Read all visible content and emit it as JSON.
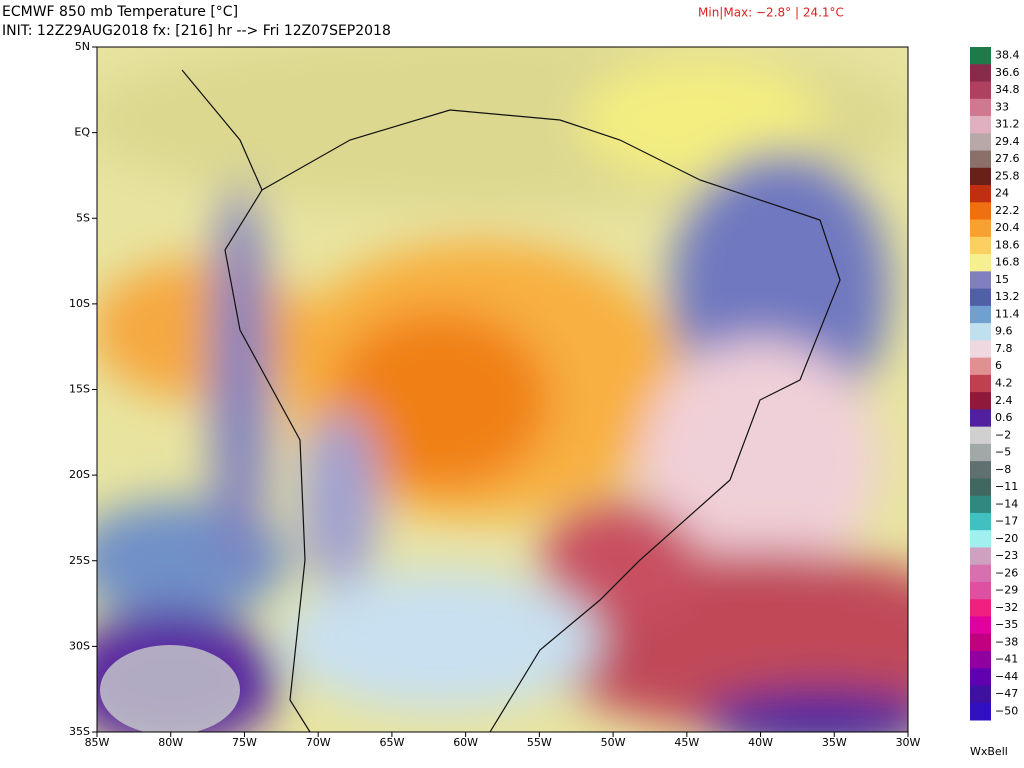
{
  "header": {
    "title": "ECMWF 850 mb Temperature [°C]",
    "init": "INIT: 12Z29AUG2018 fx: [216] hr --> Fri 12Z07SEP2018",
    "minmax": "Min|Max: −2.8° | 24.1°C"
  },
  "map": {
    "lat_labels": [
      "5N",
      "EQ",
      "5S",
      "10S",
      "15S",
      "20S",
      "25S",
      "30S",
      "35S"
    ],
    "lon_labels": [
      "85W",
      "80W",
      "75W",
      "70W",
      "65W",
      "60W",
      "55W",
      "50W",
      "45W",
      "40W",
      "35W",
      "30W"
    ]
  },
  "colorbar": {
    "levels": [
      {
        "label": "38.4",
        "color": "#1f7a4a"
      },
      {
        "label": "36.6",
        "color": "#8a2a4a"
      },
      {
        "label": "34.8",
        "color": "#b04060"
      },
      {
        "label": "33",
        "color": "#d07890"
      },
      {
        "label": "31.2",
        "color": "#e0b0c0"
      },
      {
        "label": "29.4",
        "color": "#b8a8a8"
      },
      {
        "label": "27.6",
        "color": "#8a7068"
      },
      {
        "label": "25.8",
        "color": "#6a2018"
      },
      {
        "label": "24",
        "color": "#c03010"
      },
      {
        "label": "22.2",
        "color": "#f07010"
      },
      {
        "label": "20.4",
        "color": "#f8a030"
      },
      {
        "label": "18.6",
        "color": "#fbd060"
      },
      {
        "label": "16.8",
        "color": "#f8f090"
      },
      {
        "label": "15",
        "color": "#8080c0"
      },
      {
        "label": "13.2",
        "color": "#5060a8"
      },
      {
        "label": "11.4",
        "color": "#70a0d0"
      },
      {
        "label": "9.6",
        "color": "#c0e0f0"
      },
      {
        "label": "7.8",
        "color": "#f0d8e0"
      },
      {
        "label": "6",
        "color": "#e09090"
      },
      {
        "label": "4.2",
        "color": "#c04050"
      },
      {
        "label": "2.4",
        "color": "#901838"
      },
      {
        "label": "0.6",
        "color": "#5020a0"
      },
      {
        "label": "−2",
        "color": "#d0d0d0"
      },
      {
        "label": "−5",
        "color": "#a0a8a8"
      },
      {
        "label": "−8",
        "color": "#607070"
      },
      {
        "label": "−11",
        "color": "#406860"
      },
      {
        "label": "−14",
        "color": "#308880"
      },
      {
        "label": "−17",
        "color": "#40c0c0"
      },
      {
        "label": "−20",
        "color": "#a0f0f0"
      },
      {
        "label": "−23",
        "color": "#d0a0c0"
      },
      {
        "label": "−26",
        "color": "#d870b0"
      },
      {
        "label": "−29",
        "color": "#e050a0"
      },
      {
        "label": "−32",
        "color": "#f02080"
      },
      {
        "label": "−35",
        "color": "#e000a0"
      },
      {
        "label": "−38",
        "color": "#c00080"
      },
      {
        "label": "−41",
        "color": "#9000a0"
      },
      {
        "label": "−44",
        "color": "#6000b0"
      },
      {
        "label": "−47",
        "color": "#4010a0"
      },
      {
        "label": "−50",
        "color": "#3010c0"
      }
    ]
  },
  "brand": "WxBell"
}
